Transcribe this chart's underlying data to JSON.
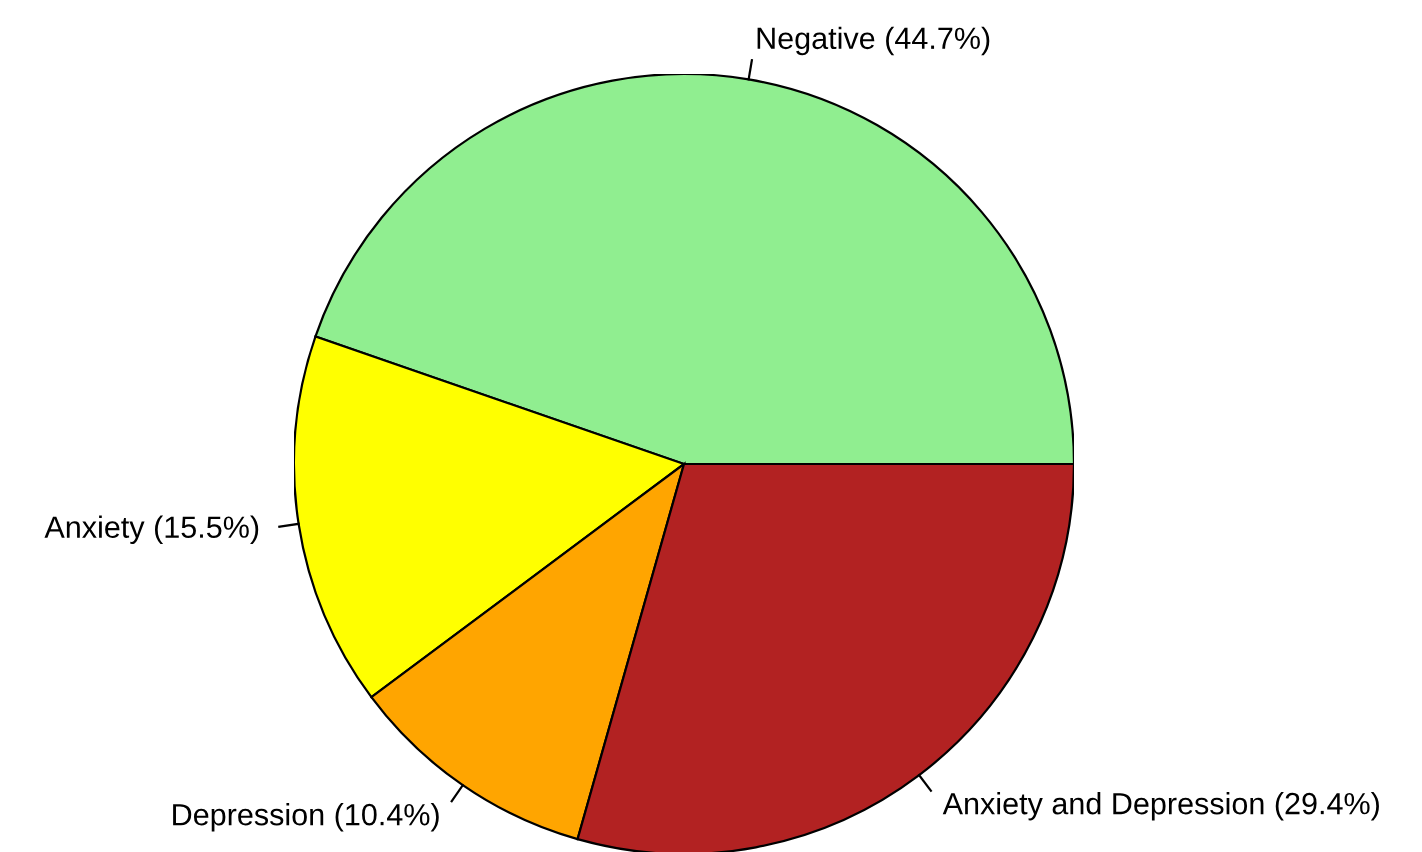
{
  "chart_data": {
    "type": "pie",
    "categories": [
      "Negative (44.7%)",
      "Anxiety (15.5%)",
      "Depression (10.4%)",
      "Anxiety and Depression (29.4%)"
    ],
    "values": [
      44.7,
      15.5,
      10.4,
      29.4
    ],
    "colors": [
      "#90ee90",
      "#ffff00",
      "#ffa500",
      "#b22222"
    ]
  }
}
